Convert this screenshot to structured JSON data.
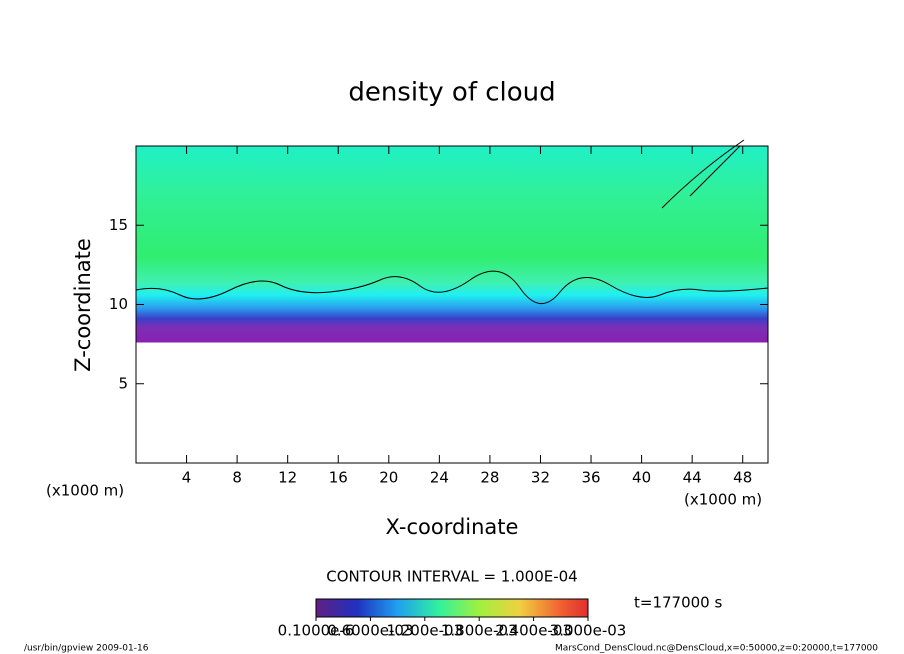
{
  "chart_data": {
    "type": "contour",
    "title": "density of cloud",
    "xlabel": "X-coordinate",
    "ylabel": "Z-coordinate",
    "x_unit": "(x1000 m)",
    "x_unit_right": "(x1000 m)",
    "xlim": [
      0,
      50
    ],
    "xticks": [
      4,
      8,
      12,
      16,
      20,
      24,
      28,
      32,
      36,
      40,
      44,
      48
    ],
    "ylim": [
      0,
      20
    ],
    "yticks": [
      5,
      10,
      15
    ],
    "contour_interval": "CONTOUR INTERVAL = 1.000E-04",
    "time": "t=177000 s",
    "colorbar": {
      "lim": [
        0,
        0.003
      ],
      "ticks": [
        {
          "value": 1e-07,
          "label": "0.1000e-6"
        },
        {
          "value": 0.0006,
          "label": "0.6000e-03"
        },
        {
          "value": 0.0012,
          "label": "1.200e-03"
        },
        {
          "value": 0.0018,
          "label": "1.800e-03"
        },
        {
          "value": 0.0024,
          "label": "2.400e-03"
        },
        {
          "value": 0.003,
          "label": "3.000e-03"
        }
      ]
    },
    "footer_left": "/usr/bin/gpview   2009-01-16",
    "footer_right": "MarsCond_DensCloud.nc@DensCloud,x=0:50000,z=0:20000,t=177000"
  }
}
